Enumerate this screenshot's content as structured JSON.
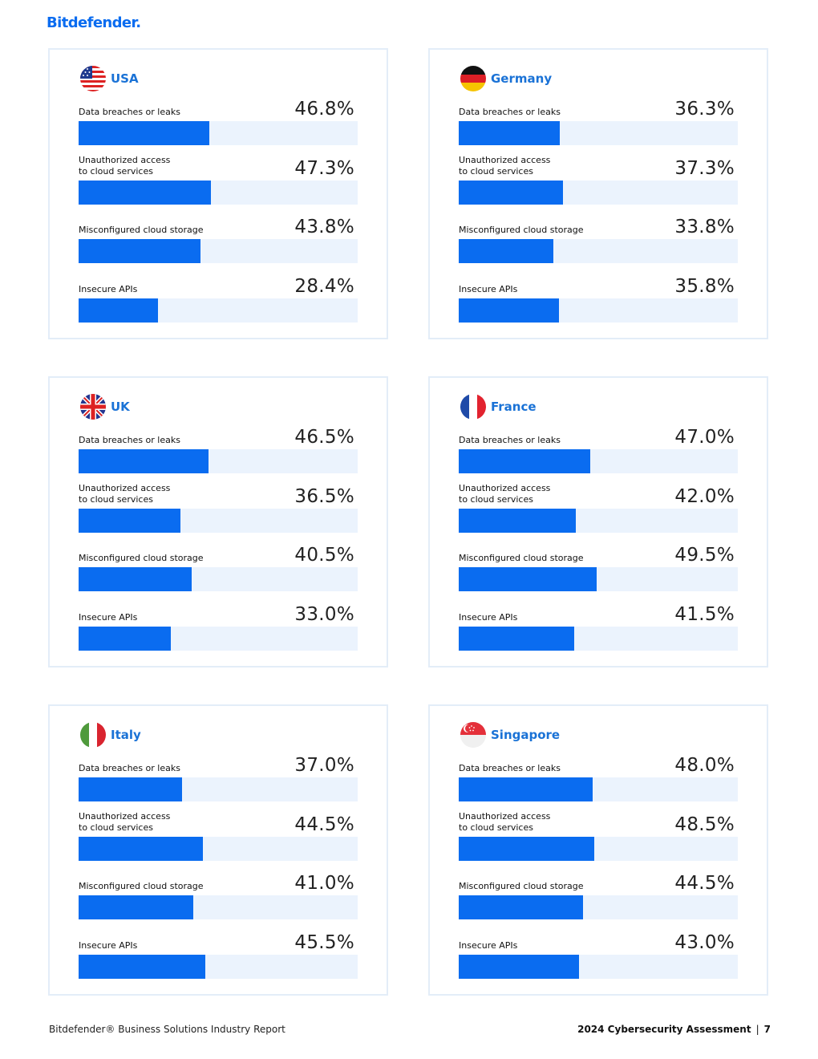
{
  "header": {
    "brand": "Bitdefender."
  },
  "colors": {
    "accent": "#0a6cf0",
    "track": "#ebf3fd",
    "border": "#e3edf8",
    "country_title": "#1a72d6"
  },
  "cards": [
    {
      "country": "USA",
      "flag_icon": "usa-flag-icon",
      "metrics": [
        {
          "label": "Data breaches or leaks",
          "value": "46.8%",
          "percent": 46.8
        },
        {
          "label": "Unauthorized access\nto cloud services",
          "value": "47.3%",
          "percent": 47.3
        },
        {
          "label": "Misconfigured cloud storage",
          "value": "43.8%",
          "percent": 43.8
        },
        {
          "label": "Insecure APIs",
          "value": "28.4%",
          "percent": 28.4
        }
      ]
    },
    {
      "country": "Germany",
      "flag_icon": "germany-flag-icon",
      "metrics": [
        {
          "label": "Data breaches or leaks",
          "value": "36.3%",
          "percent": 36.3
        },
        {
          "label": "Unauthorized access\nto cloud services",
          "value": "37.3%",
          "percent": 37.3
        },
        {
          "label": "Misconfigured cloud storage",
          "value": "33.8%",
          "percent": 33.8
        },
        {
          "label": "Insecure APIs",
          "value": "35.8%",
          "percent": 35.8
        }
      ]
    },
    {
      "country": "UK",
      "flag_icon": "uk-flag-icon",
      "metrics": [
        {
          "label": "Data breaches or leaks",
          "value": "46.5%",
          "percent": 46.5
        },
        {
          "label": "Unauthorized access\nto cloud services",
          "value": "36.5%",
          "percent": 36.5
        },
        {
          "label": "Misconfigured cloud storage",
          "value": "40.5%",
          "percent": 40.5
        },
        {
          "label": "Insecure APIs",
          "value": "33.0%",
          "percent": 33.0
        }
      ]
    },
    {
      "country": "France",
      "flag_icon": "france-flag-icon",
      "metrics": [
        {
          "label": "Data breaches or leaks",
          "value": "47.0%",
          "percent": 47.0
        },
        {
          "label": "Unauthorized access\nto cloud services",
          "value": "42.0%",
          "percent": 42.0
        },
        {
          "label": "Misconfigured cloud storage",
          "value": "49.5%",
          "percent": 49.5
        },
        {
          "label": "Insecure APIs",
          "value": "41.5%",
          "percent": 41.5
        }
      ]
    },
    {
      "country": "Italy",
      "flag_icon": "italy-flag-icon",
      "metrics": [
        {
          "label": "Data breaches or leaks",
          "value": "37.0%",
          "percent": 37.0
        },
        {
          "label": "Unauthorized access\nto cloud services",
          "value": "44.5%",
          "percent": 44.5
        },
        {
          "label": "Misconfigured cloud storage",
          "value": "41.0%",
          "percent": 41.0
        },
        {
          "label": "Insecure APIs",
          "value": "45.5%",
          "percent": 45.5
        }
      ]
    },
    {
      "country": "Singapore",
      "flag_icon": "singapore-flag-icon",
      "metrics": [
        {
          "label": "Data breaches or leaks",
          "value": "48.0%",
          "percent": 48.0
        },
        {
          "label": "Unauthorized access\nto cloud services",
          "value": "48.5%",
          "percent": 48.5
        },
        {
          "label": "Misconfigured cloud storage",
          "value": "44.5%",
          "percent": 44.5
        },
        {
          "label": "Insecure APIs",
          "value": "43.0%",
          "percent": 43.0
        }
      ]
    }
  ],
  "footer": {
    "left": "Bitdefender® Business Solutions Industry Report",
    "right_title": "2024 Cybersecurity Assessment",
    "separator": "|",
    "page_number": "7"
  }
}
